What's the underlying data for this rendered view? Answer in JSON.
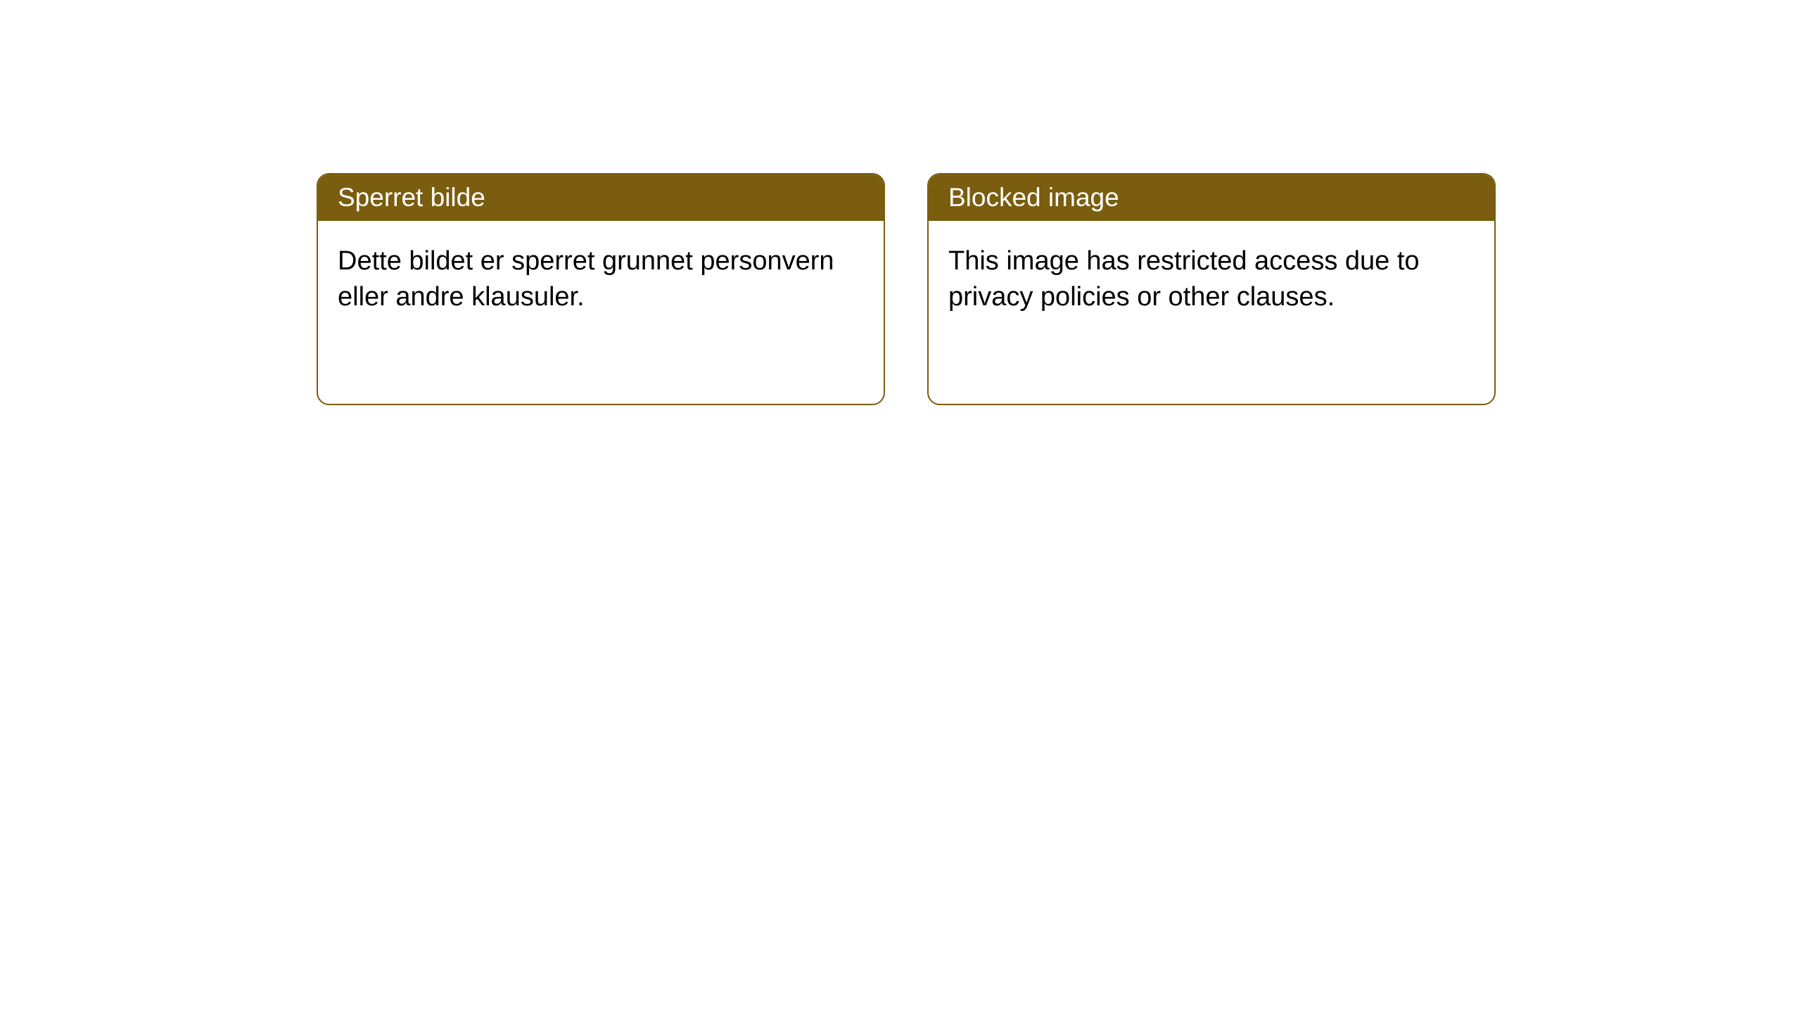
{
  "notices": [
    {
      "title": "Sperret bilde",
      "body": "Dette bildet er sperret grunnet personvern eller andre klausuler."
    },
    {
      "title": "Blocked image",
      "body": "This image has restricted access due to privacy policies or other clauses."
    }
  ],
  "style": {
    "header_bg": "#7a5d0f",
    "header_color": "#ffffff",
    "border_color": "#7a5d0f",
    "body_bg": "#ffffff",
    "text_color": "#000000",
    "border_radius": 18,
    "title_fontsize": 37,
    "body_fontsize": 38
  }
}
